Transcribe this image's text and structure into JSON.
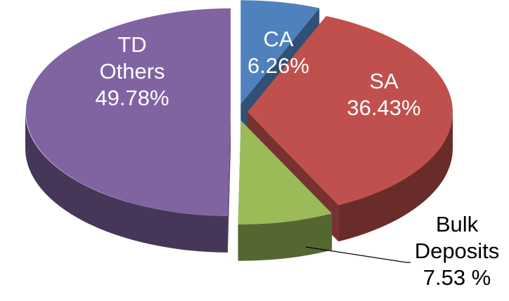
{
  "chart_data": {
    "type": "pie3d",
    "categories": [
      "CA",
      "SA",
      "Bulk Deposits",
      "TD Others"
    ],
    "values": [
      6.26,
      36.43,
      7.53,
      49.78
    ],
    "value_labels": [
      "6.26%",
      "36.43%",
      "7.53 %",
      "49.78%"
    ],
    "colors": [
      "#4f81bd",
      "#c0504d",
      "#9bbb59",
      "#8064a2"
    ]
  }
}
